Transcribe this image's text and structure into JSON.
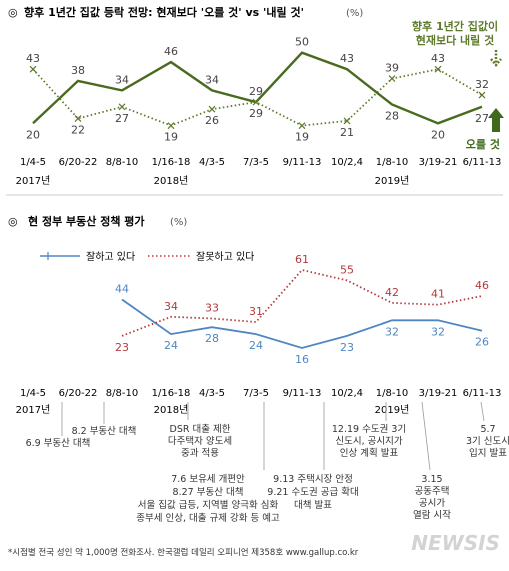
{
  "chart_data": [
    {
      "type": "line",
      "title": "향후 1년간 집값 등락 전망: 현재보다 '오를 것' vs '내릴 것'",
      "title_unit": "(%)",
      "title_marker": "◎",
      "x": [
        "1/4-5",
        "6/20-22",
        "8/8-10",
        "1/16-18",
        "4/3-5",
        "7/3-5",
        "9/11-13",
        "10/2,4",
        "1/8-10",
        "3/19-21",
        "6/11-13"
      ],
      "year_labels": [
        {
          "at": "1/4-5",
          "label": "2017년"
        },
        {
          "at": "1/16-18",
          "label": "2018년"
        },
        {
          "at": "1/8-10",
          "label": "2019년"
        }
      ],
      "ylim": [
        0,
        60
      ],
      "grid": false,
      "series": [
        {
          "name": "오를 것",
          "color": "#4a6a1e",
          "style": "solid",
          "values": [
            20,
            38,
            34,
            46,
            34,
            29,
            50,
            43,
            28,
            20,
            27
          ]
        },
        {
          "name": "향후 1년간 집값이 현재보다 내릴 것",
          "color": "#5e7a2a",
          "style": "dotted",
          "values": [
            43,
            22,
            27,
            19,
            26,
            29,
            19,
            21,
            39,
            43,
            32
          ]
        }
      ],
      "legend_rise": "오를 것",
      "legend_fall_lines": [
        "향후 1년간 집값이",
        "현재보다 내릴 것"
      ]
    },
    {
      "type": "line",
      "title": "현 정부 부동산 정책 평가",
      "title_unit": "(%)",
      "title_marker": "◎",
      "x": [
        "1/4-5",
        "6/20-22",
        "8/8-10",
        "1/16-18",
        "4/3-5",
        "7/3-5",
        "9/11-13",
        "10/2,4",
        "1/8-10",
        "3/19-21",
        "6/11-13"
      ],
      "year_labels": [
        {
          "at": "1/4-5",
          "label": "2017년"
        },
        {
          "at": "1/16-18",
          "label": "2018년"
        },
        {
          "at": "1/8-10",
          "label": "2019년"
        }
      ],
      "ylim": [
        0,
        70
      ],
      "grid": false,
      "legend": "top-left",
      "series": [
        {
          "name": "잘하고 있다",
          "color": "#4f86c2",
          "style": "solid",
          "values": [
            null,
            null,
            44,
            24,
            28,
            24,
            16,
            23,
            32,
            32,
            26
          ]
        },
        {
          "name": "잘못하고 있다",
          "color": "#b53a3a",
          "style": "dotted",
          "values": [
            null,
            null,
            23,
            34,
            33,
            31,
            61,
            55,
            42,
            41,
            46
          ]
        }
      ],
      "annotations": [
        {
          "date": "6.9",
          "lines": [
            "6.9 부동산 대책"
          ]
        },
        {
          "date": "8.2",
          "lines": [
            "8.2 부동산 대책"
          ]
        },
        {
          "date": "",
          "lines": [
            "DSR 대출 제한",
            "다주택자 양도세",
            "중과 적용"
          ]
        },
        {
          "date": "7.6",
          "lines": [
            "7.6 보유세 개편안",
            "8.27 부동산 대책",
            "서울 집값 급등, 지역별 양극화 심화",
            "종부세 인상, 대출 규제 강화 등 예고"
          ]
        },
        {
          "date": "9.13",
          "lines": [
            "9.13 주택시장 안정",
            "9.21 수도권 공급 확대",
            "대책 발표"
          ]
        },
        {
          "date": "12.19",
          "lines": [
            "12.19 수도권 3기",
            "신도시, 공시지가",
            "인상 계획 발표"
          ]
        },
        {
          "date": "3.15",
          "lines": [
            "3.15",
            "공동주택",
            "공시가",
            "열람 시작"
          ]
        },
        {
          "date": "5.7",
          "lines": [
            "5.7",
            "3기 신도시",
            "입지 발표"
          ]
        }
      ]
    }
  ],
  "footnote": "*시점별 전국 성인 약 1,000명 전화조사. 한국갤럽 데일리 오피니언 제358호 www.gallup.co.kr",
  "watermark": "NEWSIS"
}
